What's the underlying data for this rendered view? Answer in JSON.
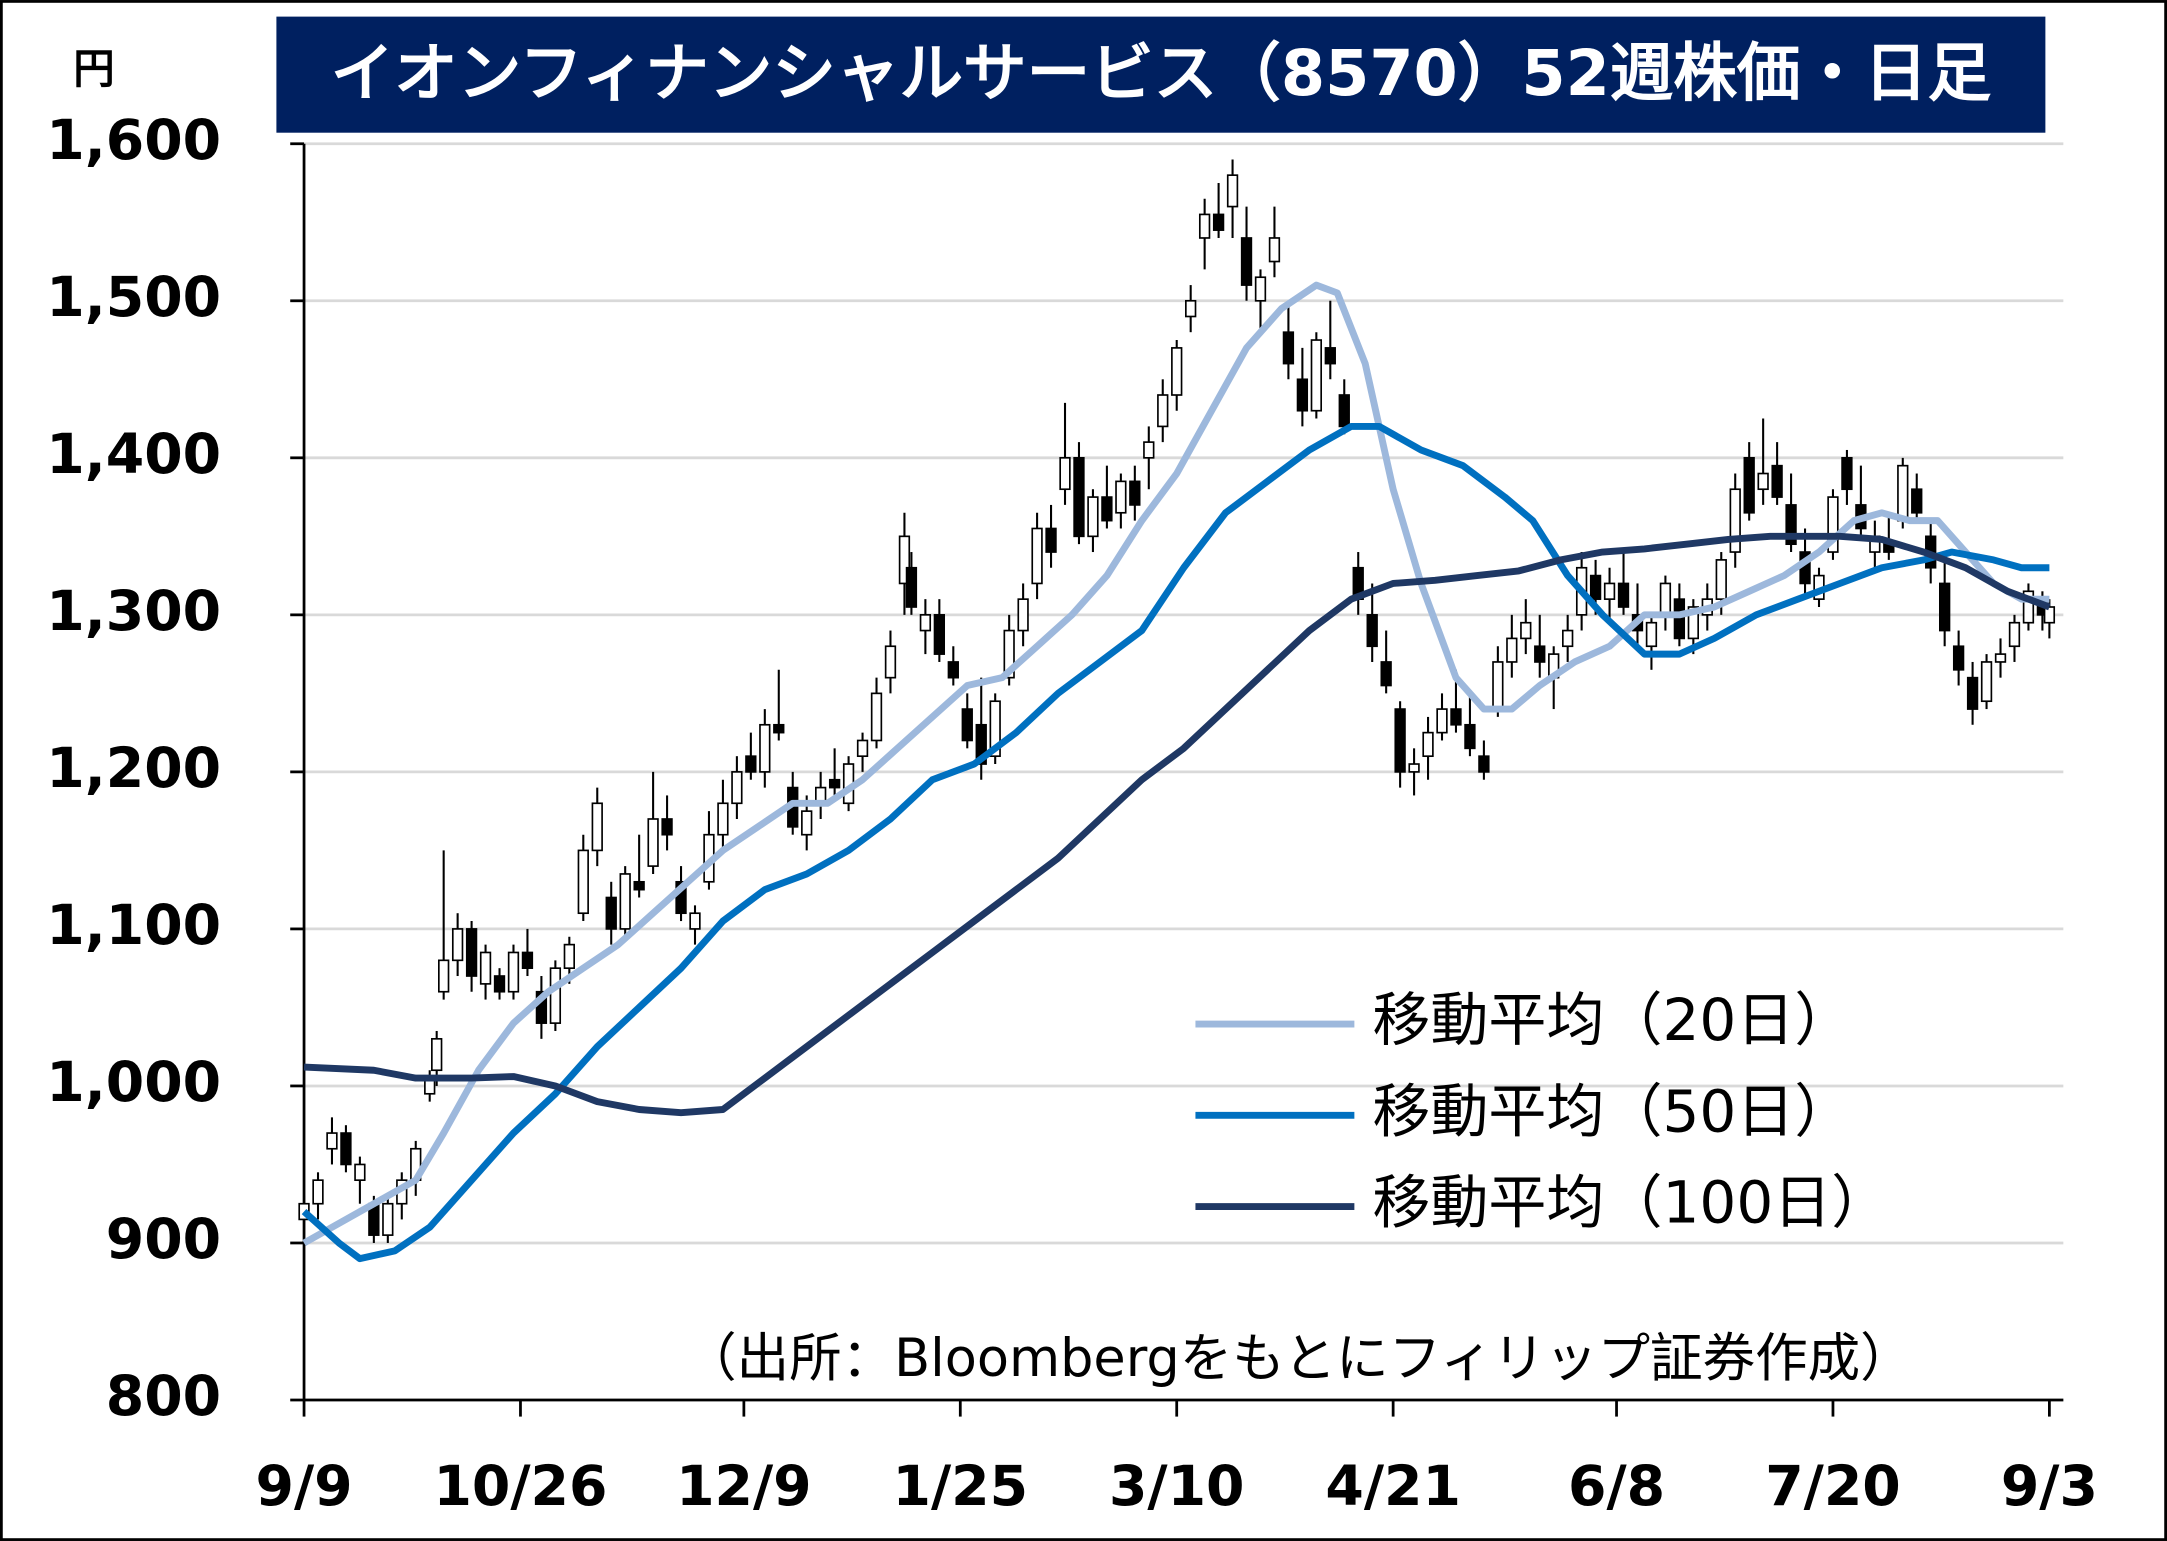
{
  "chart_data": {
    "type": "candlestick",
    "title": "イオンフィナンシャルサービス（8570）52週株価・日足",
    "y_unit": "円",
    "source": "（出所：Bloombergをもとにフィリップ証券作成）",
    "xlim": [
      0,
      252
    ],
    "xticks": [
      {
        "value": 0,
        "label": "9/9"
      },
      {
        "value": 31,
        "label": "10/26"
      },
      {
        "value": 63,
        "label": "12/9"
      },
      {
        "value": 94,
        "label": "1/25"
      },
      {
        "value": 125,
        "label": "3/10"
      },
      {
        "value": 156,
        "label": "4/21"
      },
      {
        "value": 188,
        "label": "6/8"
      },
      {
        "value": 219,
        "label": "7/20"
      },
      {
        "value": 250,
        "label": "9/3"
      }
    ],
    "ylim": [
      800,
      1600
    ],
    "yticks": [
      800,
      900,
      {
        "value": 1000,
        "label": "1,000"
      },
      {
        "value": 1100,
        "label": "1,100"
      },
      {
        "value": 1200,
        "label": "1,200"
      },
      {
        "value": 1300,
        "label": "1,300"
      },
      {
        "value": 1400,
        "label": "1,400"
      },
      {
        "value": 1500,
        "label": "1,500"
      },
      {
        "value": 1600,
        "label": "1,600"
      }
    ],
    "grid": true,
    "legend": "bottom-right",
    "up_color": "#ffffff",
    "down_color": "#000000",
    "x": [
      0,
      2,
      4,
      6,
      8,
      10,
      12,
      14,
      16,
      18,
      19,
      20,
      22,
      24,
      26,
      28,
      30,
      32,
      34,
      36,
      38,
      40,
      42,
      44,
      46,
      48,
      50,
      52,
      54,
      56,
      58,
      60,
      62,
      64,
      66,
      68,
      70,
      72,
      74,
      76,
      78,
      80,
      82,
      84,
      86,
      87,
      89,
      91,
      93,
      95,
      97,
      99,
      101,
      103,
      105,
      107,
      109,
      111,
      113,
      115,
      117,
      119,
      121,
      123,
      125,
      127,
      129,
      131,
      133,
      135,
      137,
      139,
      141,
      143,
      145,
      147,
      149,
      151,
      153,
      155,
      157,
      159,
      161,
      163,
      165,
      167,
      169,
      171,
      173,
      175,
      177,
      179,
      181,
      183,
      185,
      187,
      189,
      191,
      193,
      195,
      197,
      199,
      201,
      203,
      205,
      207,
      209,
      211,
      213,
      215,
      217,
      219,
      221,
      223,
      225,
      227,
      229,
      231,
      233,
      235,
      237,
      239,
      241,
      243,
      245,
      247,
      249,
      250
    ],
    "open": [
      915,
      925,
      960,
      970,
      940,
      925,
      905,
      925,
      940,
      995,
      1010,
      1060,
      1080,
      1100,
      1065,
      1070,
      1060,
      1085,
      1060,
      1040,
      1075,
      1110,
      1150,
      1120,
      1100,
      1130,
      1140,
      1170,
      1130,
      1100,
      1130,
      1160,
      1180,
      1210,
      1200,
      1230,
      1190,
      1160,
      1180,
      1195,
      1180,
      1210,
      1220,
      1260,
      1320,
      1330,
      1290,
      1300,
      1270,
      1240,
      1230,
      1210,
      1260,
      1290,
      1320,
      1355,
      1380,
      1400,
      1350,
      1375,
      1365,
      1385,
      1400,
      1420,
      1440,
      1490,
      1540,
      1555,
      1560,
      1540,
      1500,
      1525,
      1480,
      1450,
      1430,
      1470,
      1440,
      1330,
      1300,
      1270,
      1240,
      1200,
      1210,
      1225,
      1240,
      1230,
      1210,
      1240,
      1270,
      1285,
      1280,
      1260,
      1280,
      1300,
      1325,
      1310,
      1320,
      1300,
      1280,
      1300,
      1310,
      1285,
      1300,
      1310,
      1340,
      1400,
      1380,
      1395,
      1370,
      1340,
      1310,
      1340,
      1400,
      1370,
      1340,
      1345,
      1360,
      1380,
      1350,
      1320,
      1280,
      1260,
      1245,
      1270,
      1280,
      1295,
      1310,
      1295
    ],
    "high": [
      930,
      945,
      980,
      975,
      955,
      930,
      930,
      945,
      965,
      1010,
      1035,
      1150,
      1110,
      1105,
      1090,
      1075,
      1090,
      1100,
      1070,
      1080,
      1095,
      1160,
      1190,
      1130,
      1140,
      1160,
      1200,
      1185,
      1140,
      1115,
      1175,
      1195,
      1210,
      1225,
      1240,
      1265,
      1200,
      1185,
      1200,
      1215,
      1210,
      1225,
      1260,
      1290,
      1365,
      1340,
      1310,
      1310,
      1280,
      1250,
      1260,
      1250,
      1300,
      1320,
      1365,
      1370,
      1435,
      1410,
      1380,
      1395,
      1390,
      1395,
      1420,
      1450,
      1475,
      1510,
      1565,
      1575,
      1590,
      1560,
      1520,
      1560,
      1500,
      1470,
      1480,
      1500,
      1450,
      1340,
      1320,
      1290,
      1245,
      1215,
      1235,
      1250,
      1265,
      1250,
      1220,
      1280,
      1300,
      1310,
      1300,
      1280,
      1300,
      1340,
      1335,
      1330,
      1340,
      1320,
      1300,
      1325,
      1320,
      1310,
      1320,
      1340,
      1390,
      1410,
      1425,
      1410,
      1390,
      1355,
      1330,
      1380,
      1405,
      1395,
      1360,
      1365,
      1400,
      1390,
      1360,
      1335,
      1290,
      1270,
      1275,
      1285,
      1300,
      1320,
      1315,
      1310
    ],
    "low": [
      905,
      915,
      950,
      945,
      925,
      900,
      900,
      915,
      930,
      990,
      1000,
      1055,
      1070,
      1060,
      1055,
      1055,
      1055,
      1070,
      1030,
      1035,
      1065,
      1105,
      1140,
      1090,
      1095,
      1120,
      1135,
      1150,
      1105,
      1090,
      1125,
      1150,
      1170,
      1195,
      1190,
      1220,
      1160,
      1150,
      1170,
      1185,
      1175,
      1200,
      1215,
      1250,
      1300,
      1300,
      1275,
      1270,
      1255,
      1215,
      1195,
      1205,
      1255,
      1280,
      1310,
      1330,
      1370,
      1345,
      1340,
      1355,
      1355,
      1360,
      1380,
      1410,
      1430,
      1480,
      1520,
      1540,
      1540,
      1500,
      1480,
      1515,
      1450,
      1420,
      1425,
      1450,
      1415,
      1300,
      1270,
      1250,
      1190,
      1185,
      1195,
      1220,
      1225,
      1210,
      1195,
      1235,
      1260,
      1275,
      1260,
      1240,
      1270,
      1290,
      1300,
      1295,
      1300,
      1280,
      1265,
      1290,
      1280,
      1275,
      1290,
      1300,
      1330,
      1360,
      1370,
      1370,
      1340,
      1310,
      1305,
      1335,
      1370,
      1350,
      1330,
      1335,
      1355,
      1360,
      1320,
      1280,
      1255,
      1230,
      1240,
      1260,
      1270,
      1290,
      1290,
      1285
    ],
    "close": [
      925,
      940,
      970,
      950,
      950,
      905,
      925,
      940,
      960,
      1005,
      1030,
      1080,
      1100,
      1070,
      1085,
      1060,
      1085,
      1075,
      1040,
      1075,
      1090,
      1150,
      1180,
      1100,
      1135,
      1125,
      1170,
      1160,
      1110,
      1110,
      1160,
      1180,
      1200,
      1200,
      1230,
      1225,
      1165,
      1175,
      1190,
      1190,
      1205,
      1220,
      1250,
      1280,
      1350,
      1305,
      1300,
      1275,
      1260,
      1220,
      1205,
      1245,
      1290,
      1310,
      1355,
      1340,
      1400,
      1350,
      1375,
      1360,
      1385,
      1370,
      1410,
      1440,
      1470,
      1500,
      1555,
      1545,
      1580,
      1510,
      1515,
      1540,
      1460,
      1430,
      1475,
      1460,
      1420,
      1310,
      1280,
      1255,
      1200,
      1205,
      1225,
      1240,
      1230,
      1215,
      1200,
      1270,
      1285,
      1295,
      1270,
      1275,
      1290,
      1330,
      1310,
      1320,
      1305,
      1290,
      1295,
      1320,
      1285,
      1305,
      1310,
      1335,
      1380,
      1365,
      1390,
      1375,
      1345,
      1320,
      1325,
      1375,
      1380,
      1355,
      1350,
      1340,
      1395,
      1365,
      1330,
      1290,
      1265,
      1240,
      1270,
      1275,
      1295,
      1315,
      1300,
      1305
    ],
    "series": [
      {
        "name": "移動平均（20日）",
        "color": "#9db8dc",
        "x": [
          0,
          10,
          16,
          20,
          25,
          30,
          35,
          40,
          45,
          50,
          55,
          60,
          65,
          70,
          75,
          80,
          85,
          90,
          95,
          100,
          105,
          110,
          115,
          120,
          125,
          130,
          135,
          140,
          145,
          148,
          152,
          156,
          160,
          165,
          169,
          173,
          177,
          182,
          187,
          192,
          197,
          202,
          207,
          212,
          217,
          222,
          226,
          230,
          234,
          238,
          242,
          246,
          250
        ],
        "values": [
          900,
          925,
          940,
          970,
          1010,
          1040,
          1060,
          1075,
          1090,
          1110,
          1130,
          1150,
          1165,
          1180,
          1180,
          1195,
          1215,
          1235,
          1255,
          1260,
          1280,
          1300,
          1325,
          1360,
          1390,
          1430,
          1470,
          1495,
          1510,
          1505,
          1460,
          1380,
          1320,
          1260,
          1240,
          1240,
          1255,
          1270,
          1280,
          1300,
          1300,
          1305,
          1315,
          1325,
          1340,
          1360,
          1365,
          1360,
          1360,
          1340,
          1320,
          1310,
          1310
        ]
      },
      {
        "name": "移動平均（50日）",
        "color": "#0070c0",
        "x": [
          0,
          5,
          8,
          13,
          18,
          24,
          30,
          36,
          42,
          48,
          54,
          60,
          66,
          72,
          78,
          84,
          90,
          96,
          102,
          108,
          114,
          120,
          126,
          132,
          138,
          144,
          150,
          154,
          160,
          166,
          172,
          176,
          181,
          186,
          192,
          197,
          202,
          208,
          214,
          220,
          226,
          232,
          236,
          242,
          246,
          250
        ],
        "values": [
          920,
          900,
          890,
          895,
          910,
          940,
          970,
          995,
          1025,
          1050,
          1075,
          1105,
          1125,
          1135,
          1150,
          1170,
          1195,
          1205,
          1225,
          1250,
          1270,
          1290,
          1330,
          1365,
          1385,
          1405,
          1420,
          1420,
          1405,
          1395,
          1375,
          1360,
          1325,
          1300,
          1275,
          1275,
          1285,
          1300,
          1310,
          1320,
          1330,
          1335,
          1340,
          1335,
          1330,
          1330
        ]
      },
      {
        "name": "移動平均（100日）",
        "color": "#1f3864",
        "x": [
          0,
          10,
          16,
          24,
          30,
          36,
          42,
          48,
          54,
          60,
          66,
          72,
          78,
          84,
          90,
          96,
          102,
          108,
          114,
          120,
          126,
          132,
          138,
          144,
          150,
          156,
          162,
          168,
          174,
          180,
          186,
          192,
          198,
          204,
          210,
          220,
          226,
          232,
          238,
          244,
          250
        ],
        "values": [
          1012,
          1010,
          1005,
          1005,
          1006,
          1000,
          990,
          985,
          983,
          985,
          1005,
          1025,
          1045,
          1065,
          1085,
          1105,
          1125,
          1145,
          1170,
          1195,
          1215,
          1240,
          1265,
          1290,
          1310,
          1320,
          1322,
          1325,
          1328,
          1335,
          1340,
          1342,
          1345,
          1348,
          1350,
          1350,
          1348,
          1340,
          1330,
          1315,
          1305
        ]
      }
    ]
  }
}
